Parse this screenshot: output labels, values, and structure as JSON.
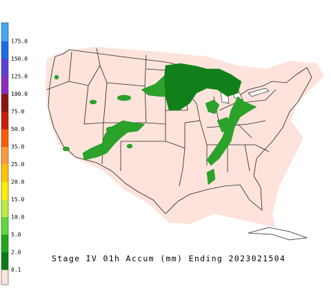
{
  "title": "Stage IV 01h Accum (mm) Ending 2023021504",
  "legend": {
    "labels": [
      "175.0",
      "150.0",
      "125.0",
      "100.0",
      "75.0",
      "50.0",
      "35.0",
      "25.0",
      "20.0",
      "15.0",
      "10.0",
      "5.0",
      "2.0",
      "0.1"
    ],
    "colors": [
      "#3fa9f5",
      "#1c6be8",
      "#5a3fd0",
      "#8a2bc0",
      "#8b1010",
      "#c81e0a",
      "#ff5a00",
      "#ff9a3c",
      "#ffc400",
      "#ffee00",
      "#b8f03c",
      "#5fd83a",
      "#1aa81a",
      "#0a7a14",
      "#fde3db"
    ]
  }
}
